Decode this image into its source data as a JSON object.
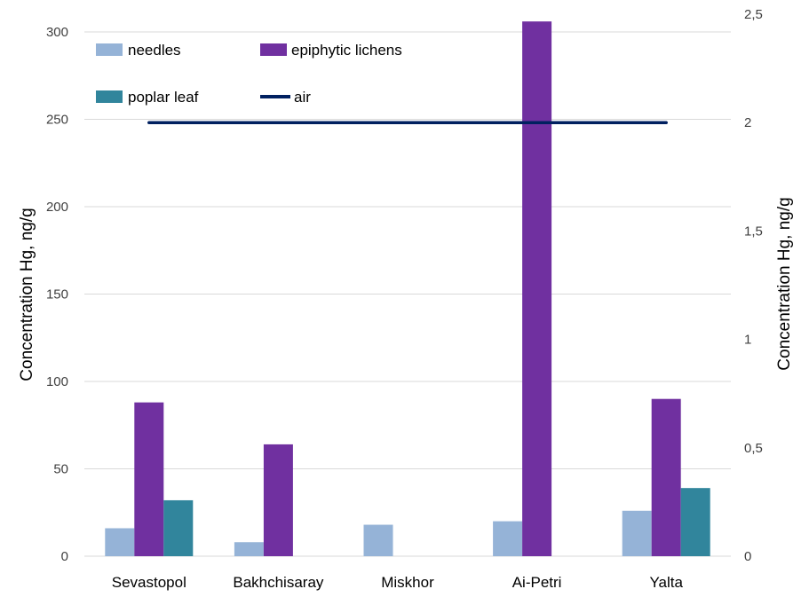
{
  "chart_data": {
    "type": "bar",
    "categories": [
      "Sevastopol",
      "Bakhchisaray",
      "Miskhor",
      "Ai-Petri",
      "Yalta"
    ],
    "series": [
      {
        "name": "needles",
        "kind": "bar",
        "axis": "left",
        "color": "#95b3d7",
        "values": [
          16,
          8,
          18,
          20,
          26
        ]
      },
      {
        "name": "epiphytic lichens",
        "kind": "bar",
        "axis": "left",
        "color": "#7030a0",
        "values": [
          88,
          64,
          null,
          306,
          90
        ]
      },
      {
        "name": "poplar leaf",
        "kind": "bar",
        "axis": "left",
        "color": "#31859c",
        "values": [
          32,
          null,
          null,
          null,
          39
        ]
      },
      {
        "name": "air",
        "kind": "line",
        "axis": "right",
        "color": "#002060",
        "values": [
          2,
          2,
          2,
          2,
          2
        ]
      }
    ],
    "ylabel": "Concentration Hg, ng/g",
    "y2label": "Concentration Hg, ng/g",
    "ylim": [
      0,
      310
    ],
    "y2lim": [
      0,
      2.5
    ],
    "yticks": [
      "0",
      "50",
      "100",
      "150",
      "200",
      "250",
      "300"
    ],
    "y2ticks": [
      "0",
      "0,5",
      "1",
      "1,5",
      "2",
      "2,5"
    ],
    "grid": true,
    "legend_position": "top-left"
  }
}
